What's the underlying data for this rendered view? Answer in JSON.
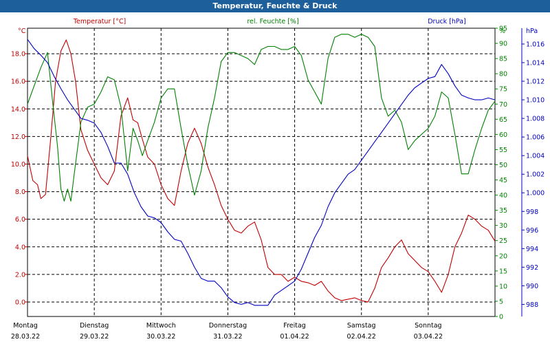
{
  "window": {
    "title": "Temperatur, Feuchte & Druck"
  },
  "colors": {
    "temperature": "#c00000",
    "humidity": "#008000",
    "pressure": "#0000c0",
    "titlebar": "#1d5f9a",
    "grid": "#000000"
  },
  "chart_data": {
    "type": "line",
    "grid": true,
    "x_axis": {
      "range": [
        0,
        7
      ],
      "unit": "days",
      "days": [
        "Montag",
        "Dienstag",
        "Mittwoch",
        "Donnerstag",
        "Freitag",
        "Samstag",
        "Sonntag"
      ],
      "dates": [
        "28.03.22",
        "29.03.22",
        "30.03.22",
        "31.03.22",
        "01.04.22",
        "02.04.22",
        "03.04.22"
      ]
    },
    "axes": {
      "temperature": {
        "label": "Temperatur [°C]",
        "unit": "°C",
        "range": [
          -1.05,
          19.85
        ],
        "ticks": [
          "0.0",
          "2.0",
          "4.0",
          "6.0",
          "8.0",
          "10.0",
          "12.0",
          "14.0",
          "16.0",
          "18.0"
        ]
      },
      "humidity": {
        "label": "rel. Feuchte [%]",
        "unit": "%",
        "range": [
          0,
          95
        ],
        "ticks": [
          "0",
          "5",
          "10",
          "15",
          "20",
          "25",
          "30",
          "35",
          "40",
          "45",
          "50",
          "55",
          "60",
          "65",
          "70",
          "75",
          "80",
          "85",
          "90",
          "95"
        ]
      },
      "pressure": {
        "label": "Druck [hPa]",
        "unit": "hPa",
        "range": [
          986.7,
          1017.7
        ],
        "ticks": [
          "988",
          "990",
          "992",
          "994",
          "996",
          "998",
          "1.000",
          "1.002",
          "1.004",
          "1.006",
          "1.008",
          "1.010",
          "1.012",
          "1.014",
          "1.016"
        ]
      }
    },
    "series": [
      {
        "name": "Temperatur [°C]",
        "axis": "temperature",
        "x": [
          0,
          0.08,
          0.15,
          0.2,
          0.27,
          0.35,
          0.42,
          0.5,
          0.58,
          0.65,
          0.72,
          0.8,
          0.9,
          1.0,
          1.1,
          1.2,
          1.3,
          1.4,
          1.5,
          1.58,
          1.65,
          1.72,
          1.8,
          1.9,
          2.0,
          2.1,
          2.2,
          2.3,
          2.4,
          2.5,
          2.6,
          2.7,
          2.8,
          2.9,
          3.0,
          3.1,
          3.2,
          3.3,
          3.4,
          3.5,
          3.6,
          3.7,
          3.8,
          3.9,
          4.0,
          4.1,
          4.2,
          4.3,
          4.4,
          4.5,
          4.6,
          4.7,
          4.8,
          4.9,
          5.0,
          5.1,
          5.2,
          5.3,
          5.4,
          5.5,
          5.6,
          5.7,
          5.8,
          5.9,
          6.0,
          6.1,
          6.2,
          6.3,
          6.4,
          6.5,
          6.6,
          6.7,
          6.8,
          6.9,
          7.0
        ],
        "values": [
          10.6,
          8.8,
          8.5,
          7.5,
          7.8,
          12.0,
          16.0,
          18.2,
          19.0,
          18.0,
          16.0,
          12.5,
          11.0,
          10.0,
          9.0,
          8.5,
          9.5,
          13.5,
          14.8,
          13.2,
          13.0,
          11.8,
          10.5,
          10.0,
          8.5,
          7.5,
          7.0,
          9.5,
          11.5,
          12.6,
          11.5,
          9.8,
          8.5,
          7.0,
          6.0,
          5.2,
          5.0,
          5.5,
          5.8,
          4.5,
          2.5,
          2.0,
          2.0,
          1.5,
          1.8,
          1.5,
          1.4,
          1.2,
          1.5,
          0.8,
          0.3,
          0.1,
          0.2,
          0.3,
          0.1,
          0.0,
          1.0,
          2.5,
          3.2,
          4.0,
          4.5,
          3.5,
          3.0,
          2.5,
          2.2,
          1.5,
          0.7,
          2.0,
          4.0,
          5.0,
          6.3,
          6.0,
          5.5,
          5.2,
          4.4
        ]
      },
      {
        "name": "rel. Feuchte [%]",
        "axis": "humidity",
        "x": [
          0,
          0.1,
          0.2,
          0.3,
          0.38,
          0.45,
          0.5,
          0.55,
          0.6,
          0.65,
          0.7,
          0.8,
          0.9,
          1.0,
          1.1,
          1.2,
          1.3,
          1.4,
          1.5,
          1.58,
          1.65,
          1.72,
          1.8,
          1.9,
          2.0,
          2.1,
          2.2,
          2.3,
          2.4,
          2.5,
          2.6,
          2.7,
          2.8,
          2.9,
          3.0,
          3.1,
          3.2,
          3.3,
          3.4,
          3.5,
          3.6,
          3.7,
          3.8,
          3.9,
          4.0,
          4.1,
          4.2,
          4.3,
          4.4,
          4.5,
          4.6,
          4.7,
          4.8,
          4.9,
          5.0,
          5.1,
          5.2,
          5.3,
          5.4,
          5.5,
          5.6,
          5.7,
          5.8,
          5.9,
          6.0,
          6.1,
          6.2,
          6.3,
          6.4,
          6.5,
          6.6,
          6.7,
          6.8,
          6.9,
          7.0
        ],
        "values": [
          70,
          76,
          82,
          87,
          70,
          56,
          42,
          38,
          42,
          38,
          47,
          64,
          69,
          70,
          74,
          79,
          78,
          69,
          48,
          62,
          58,
          53,
          58,
          64,
          72,
          75,
          75,
          62,
          50,
          40,
          48,
          62,
          72,
          84,
          87,
          87,
          86,
          85,
          83,
          88,
          89,
          89,
          88,
          88,
          89,
          86,
          78,
          74,
          70,
          85,
          92,
          93,
          93,
          92,
          93,
          92,
          89,
          72,
          66,
          68,
          64,
          55,
          58,
          60,
          62,
          66,
          74,
          72,
          60,
          47,
          47,
          55,
          62,
          68,
          71
        ]
      },
      {
        "name": "Druck [hPa]",
        "axis": "pressure",
        "x": [
          0,
          0.1,
          0.2,
          0.3,
          0.4,
          0.5,
          0.6,
          0.7,
          0.8,
          0.9,
          1.0,
          1.1,
          1.2,
          1.3,
          1.4,
          1.5,
          1.6,
          1.7,
          1.8,
          1.9,
          2.0,
          2.1,
          2.2,
          2.3,
          2.4,
          2.5,
          2.6,
          2.7,
          2.8,
          2.9,
          3.0,
          3.1,
          3.2,
          3.3,
          3.4,
          3.5,
          3.6,
          3.7,
          3.8,
          3.9,
          4.0,
          4.1,
          4.2,
          4.3,
          4.4,
          4.5,
          4.6,
          4.7,
          4.8,
          4.9,
          5.0,
          5.1,
          5.2,
          5.3,
          5.4,
          5.5,
          5.6,
          5.7,
          5.8,
          5.9,
          6.0,
          6.1,
          6.2,
          6.3,
          6.4,
          6.5,
          6.6,
          6.7,
          6.8,
          6.9,
          7.0
        ],
        "values": [
          1016.5,
          1015.5,
          1014.8,
          1014.0,
          1012.5,
          1011.2,
          1010.0,
          1009.0,
          1008.0,
          1007.8,
          1007.5,
          1006.5,
          1005.0,
          1003.2,
          1003.2,
          1002.0,
          1000.0,
          998.5,
          997.5,
          997.3,
          996.8,
          995.8,
          995.0,
          994.8,
          993.5,
          992.0,
          990.8,
          990.5,
          990.5,
          989.8,
          988.8,
          988.2,
          988.0,
          988.2,
          987.9,
          987.9,
          987.9,
          989.0,
          989.5,
          990.0,
          990.5,
          991.8,
          993.5,
          995.2,
          996.5,
          998.5,
          1000.0,
          1001.0,
          1002.0,
          1002.5,
          1003.5,
          1004.5,
          1005.5,
          1006.5,
          1007.5,
          1008.5,
          1009.5,
          1010.5,
          1011.3,
          1011.8,
          1012.3,
          1012.5,
          1013.8,
          1012.8,
          1011.5,
          1010.5,
          1010.2,
          1010.0,
          1010.0,
          1010.2,
          1010.0
        ]
      }
    ]
  }
}
